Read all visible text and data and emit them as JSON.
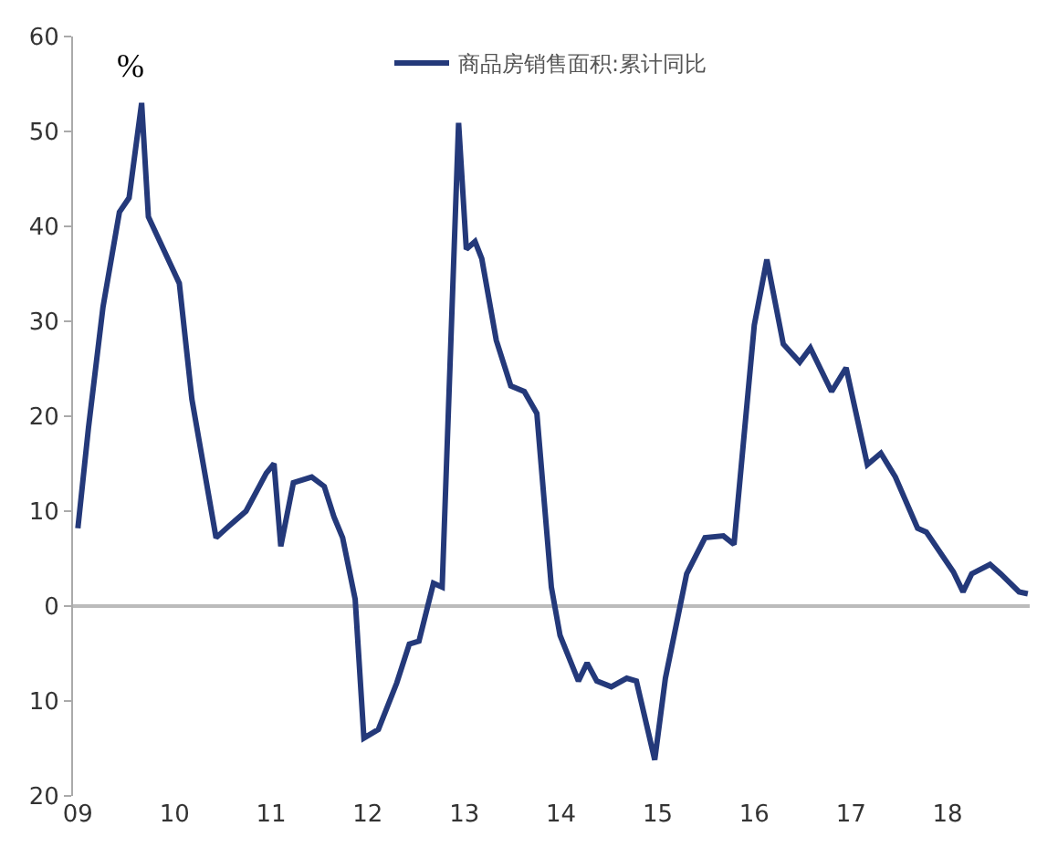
{
  "chart_data": {
    "type": "line",
    "ylabel": "%",
    "legend": "top",
    "x": [
      2009.0,
      2009.11,
      2009.26,
      2009.43,
      2009.53,
      2009.66,
      2009.73,
      2010.05,
      2010.18,
      2010.43,
      2010.56,
      2010.74,
      2010.95,
      2011.03,
      2011.1,
      2011.23,
      2011.42,
      2011.55,
      2011.65,
      2011.74,
      2011.87,
      2011.96,
      2012.11,
      2012.3,
      2012.43,
      2012.53,
      2012.68,
      2012.77,
      2012.94,
      2013.02,
      2013.11,
      2013.18,
      2013.33,
      2013.48,
      2013.62,
      2013.75,
      2013.9,
      2013.99,
      2014.18,
      2014.27,
      2014.37,
      2014.52,
      2014.68,
      2014.78,
      2014.97,
      2015.08,
      2015.3,
      2015.49,
      2015.68,
      2015.79,
      2016.0,
      2016.13,
      2016.3,
      2016.47,
      2016.58,
      2016.8,
      2016.95,
      2017.17,
      2017.31,
      2017.46,
      2017.69,
      2017.78,
      2018.06,
      2018.16,
      2018.25,
      2018.44,
      2018.55,
      2018.74,
      2018.83
    ],
    "series": [
      {
        "name": "商品房销售面积:累计同比",
        "color": "#24397a",
        "values": [
          8.2,
          18.8,
          31.5,
          41.5,
          43,
          53,
          41,
          34,
          21.8,
          7.2,
          8.4,
          10,
          14,
          15,
          6.3,
          13,
          13.6,
          12.6,
          9.4,
          7.2,
          0.7,
          -13.9,
          -13,
          -8.1,
          -4,
          -3.7,
          2.4,
          2,
          50.9,
          37.6,
          38.4,
          36.6,
          28,
          23.2,
          22.6,
          20.3,
          2,
          -3.1,
          -7.9,
          -6,
          -7.9,
          -8.5,
          -7.6,
          -7.9,
          -16.2,
          -7.6,
          3.4,
          7.2,
          7.4,
          6.5,
          29.6,
          36.5,
          27.6,
          25.7,
          27.2,
          22.6,
          25.1,
          14.9,
          16.1,
          13.6,
          8.2,
          7.8,
          3.6,
          1.5,
          3.4,
          4.4,
          3.4,
          1.5,
          1.3
        ]
      }
    ],
    "xlim": [
      2008.95,
      2018.85
    ],
    "xticks": [
      {
        "value": 2009,
        "label": "09"
      },
      {
        "value": 2010,
        "label": "10"
      },
      {
        "value": 2011,
        "label": "11"
      },
      {
        "value": 2012,
        "label": "12"
      },
      {
        "value": 2013,
        "label": "13"
      },
      {
        "value": 2014,
        "label": "14"
      },
      {
        "value": 2015,
        "label": "15"
      },
      {
        "value": 2016,
        "label": "16"
      },
      {
        "value": 2017,
        "label": "17"
      },
      {
        "value": 2018,
        "label": "18"
      }
    ],
    "ylim": [
      -20,
      60
    ],
    "yticks": [
      {
        "value": -20,
        "label": "20"
      },
      {
        "value": -10,
        "label": "10"
      },
      0,
      10,
      20,
      30,
      40,
      50,
      60
    ],
    "ref_lines": [
      {
        "axis": "y",
        "value": 0,
        "color": "#bbbbbb"
      }
    ],
    "grid": false,
    "line_style": "solid",
    "marker": "none"
  }
}
